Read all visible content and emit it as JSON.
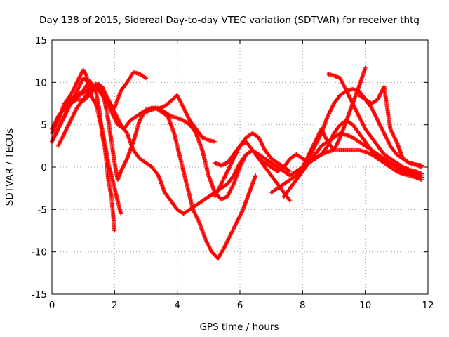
{
  "chart_data": {
    "type": "scatter",
    "title": "Day 138 of 2015, Sidereal Day-to-day VTEC variation (SDTVAR) for receiver thtg",
    "xlabel": "GPS time / hours",
    "ylabel": "SDTVAR / TECUs",
    "xlim": [
      0,
      12
    ],
    "ylim": [
      -15,
      15
    ],
    "xticks": [
      0,
      2,
      4,
      6,
      8,
      10,
      12
    ],
    "yticks": [
      -15,
      -10,
      -5,
      0,
      5,
      10,
      15
    ],
    "grid": true,
    "marker": "+",
    "color": "#ff0000",
    "series": [
      {
        "x": [
          0.0,
          0.2,
          0.4,
          0.6,
          0.8,
          1.0,
          1.2,
          1.4,
          1.6,
          1.7,
          1.8,
          1.9,
          2.0,
          2.1,
          2.2,
          2.4,
          2.6,
          2.8,
          3.0,
          3.2,
          3.4,
          3.6,
          3.8,
          4.0,
          4.2,
          4.4,
          4.6,
          4.8,
          5.0,
          5.2
        ],
        "y": [
          3.0,
          4.5,
          6.0,
          7.5,
          9.0,
          10.5,
          9.8,
          9.6,
          9.0,
          7.5,
          5.5,
          3.0,
          0.5,
          -1.5,
          -0.5,
          1.0,
          3.0,
          5.5,
          6.8,
          7.0,
          6.9,
          7.2,
          7.8,
          8.5,
          7.0,
          5.5,
          4.5,
          3.5,
          3.2,
          3.0
        ]
      },
      {
        "x": [
          0.0,
          0.2,
          0.4,
          0.6,
          0.8,
          1.0,
          1.1,
          1.2,
          1.3,
          1.4,
          1.5,
          1.6,
          1.7,
          1.8,
          1.9,
          2.0,
          2.1,
          2.2
        ],
        "y": [
          4.0,
          5.5,
          7.5,
          8.5,
          10.0,
          11.5,
          10.8,
          9.0,
          8.0,
          7.5,
          6.0,
          4.5,
          2.5,
          0.5,
          -1.0,
          -2.5,
          -4.0,
          -5.5
        ]
      },
      {
        "x": [
          0.0,
          0.2,
          0.4,
          0.6,
          0.8,
          1.0,
          1.2,
          1.4,
          1.5,
          1.6,
          1.7,
          1.8,
          1.9,
          2.0
        ],
        "y": [
          3.0,
          4.5,
          6.0,
          8.0,
          8.5,
          9.0,
          10.2,
          9.0,
          7.0,
          4.0,
          2.0,
          -1.5,
          -3.5,
          -7.5
        ]
      },
      {
        "x": [
          0.0,
          0.2,
          0.4,
          0.6,
          0.8,
          1.0,
          1.2,
          1.4,
          1.6,
          1.8,
          2.0,
          2.2,
          2.4,
          2.6,
          2.8,
          3.0
        ],
        "y": [
          4.5,
          6.0,
          7.0,
          7.5,
          8.0,
          7.8,
          8.5,
          9.5,
          8.5,
          7.5,
          7.0,
          9.0,
          10.0,
          11.2,
          11.0,
          10.5
        ]
      },
      {
        "x": [
          0.1,
          0.3,
          0.5,
          0.7,
          0.9,
          1.1,
          1.3,
          1.5,
          1.7,
          1.9,
          2.1,
          2.3,
          2.5,
          2.7,
          2.9,
          3.1,
          3.3,
          3.5,
          3.7,
          3.9,
          4.1,
          4.3,
          4.5,
          4.7,
          4.9,
          5.1,
          5.3,
          5.5,
          5.7,
          5.9,
          6.1,
          6.3,
          6.5
        ],
        "y": [
          5.0,
          6.5,
          7.5,
          8.0,
          8.5,
          9.0,
          9.5,
          9.8,
          8.5,
          6.5,
          5.0,
          4.5,
          5.5,
          6.0,
          6.5,
          6.8,
          7.0,
          6.5,
          6.0,
          4.0,
          1.0,
          -2.0,
          -5.0,
          -6.5,
          -8.5,
          -10.0,
          -10.8,
          -9.5,
          -8.0,
          -6.5,
          -5.0,
          -3.0,
          -1.0
        ]
      },
      {
        "x": [
          0.2,
          0.4,
          0.6,
          0.8,
          1.0,
          1.2,
          1.4,
          1.6,
          1.8,
          2.0,
          2.2,
          2.4,
          2.6,
          2.8,
          3.0,
          3.2,
          3.4,
          3.6,
          3.8,
          4.0,
          4.2,
          4.4,
          4.6,
          4.8,
          5.0,
          5.2,
          5.4,
          5.6,
          5.8,
          6.0,
          6.2,
          6.4,
          6.6,
          6.8,
          7.0,
          7.2,
          7.4,
          7.6,
          7.8,
          8.0
        ],
        "y": [
          2.5,
          4.0,
          5.5,
          7.0,
          8.0,
          9.0,
          9.8,
          9.5,
          8.0,
          6.5,
          5.0,
          4.0,
          2.0,
          1.0,
          0.5,
          0.0,
          -1.0,
          -3.0,
          -4.0,
          -5.0,
          -5.5,
          -5.0,
          -4.5,
          -4.0,
          -3.5,
          -3.0,
          -2.5,
          -2.0,
          -1.0,
          0.5,
          1.5,
          2.0,
          1.5,
          1.0,
          0.5,
          0.0,
          -0.5,
          -1.0,
          -0.5,
          0.0
        ]
      },
      {
        "x": [
          3.0,
          3.2,
          3.4,
          3.6,
          3.8,
          4.0,
          4.2,
          4.4,
          4.6,
          4.8,
          5.0,
          5.2,
          5.4,
          5.6,
          5.8,
          6.0,
          6.2,
          6.4,
          6.6,
          6.8,
          7.0,
          7.2,
          7.4,
          7.6
        ],
        "y": [
          6.5,
          6.8,
          7.0,
          6.5,
          6.0,
          5.8,
          5.5,
          5.0,
          4.0,
          2.0,
          -1.0,
          -3.0,
          -3.8,
          -3.5,
          -2.0,
          0.0,
          1.5,
          2.0,
          1.0,
          0.0,
          -1.0,
          -2.0,
          -3.0,
          -4.0
        ]
      },
      {
        "x": [
          5.2,
          5.4,
          5.6,
          5.8,
          6.0,
          6.2,
          6.4,
          6.6,
          6.8,
          7.0,
          7.2,
          7.4,
          7.6,
          7.8,
          8.0,
          8.2,
          8.4,
          8.6,
          8.8,
          9.0,
          9.2,
          9.4,
          9.6,
          9.8,
          10.0,
          10.2,
          10.4,
          10.6,
          10.8,
          11.0,
          11.2,
          11.4,
          11.6,
          11.8
        ],
        "y": [
          0.5,
          0.2,
          0.5,
          1.5,
          2.5,
          3.0,
          2.0,
          1.0,
          0.5,
          0.0,
          -0.5,
          0.0,
          1.0,
          1.5,
          1.0,
          0.5,
          1.0,
          1.5,
          1.8,
          2.0,
          2.0,
          2.0,
          2.0,
          2.0,
          1.8,
          1.5,
          1.0,
          0.8,
          0.5,
          0.0,
          -0.3,
          -0.5,
          -0.8,
          -1.0
        ]
      },
      {
        "x": [
          5.2,
          5.4,
          5.6,
          5.8,
          6.0,
          6.2,
          6.4,
          6.6,
          6.8,
          7.0,
          7.2,
          7.4,
          7.6
        ],
        "y": [
          -3.5,
          -2.0,
          -0.5,
          1.0,
          2.5,
          3.5,
          4.0,
          3.5,
          2.0,
          1.0,
          0.5,
          0.0,
          -0.5
        ]
      },
      {
        "x": [
          7.0,
          7.2,
          7.4,
          7.6,
          7.8,
          8.0,
          8.2,
          8.4,
          8.6,
          8.8,
          9.0,
          9.2,
          9.4,
          9.6,
          9.8,
          10.0,
          10.2,
          10.4,
          10.6,
          10.8,
          11.0,
          11.2,
          11.4,
          11.6,
          11.8
        ],
        "y": [
          -3.0,
          -2.5,
          -2.0,
          -1.5,
          -1.0,
          0.0,
          1.0,
          2.5,
          4.0,
          6.0,
          7.5,
          8.5,
          9.0,
          9.2,
          9.0,
          8.0,
          7.0,
          5.5,
          4.0,
          2.5,
          1.5,
          1.0,
          0.5,
          0.3,
          0.0
        ]
      },
      {
        "x": [
          7.4,
          7.6,
          7.8,
          8.0,
          8.2,
          8.4,
          8.6,
          8.8,
          9.0,
          9.2,
          9.4,
          9.6,
          9.8,
          10.0,
          10.2,
          10.4,
          10.6,
          10.8,
          11.0,
          11.2,
          11.4,
          11.6,
          11.8
        ],
        "y": [
          -3.5,
          -2.5,
          -1.5,
          -0.5,
          0.5,
          1.5,
          2.5,
          3.0,
          3.5,
          4.0,
          3.8,
          3.5,
          3.0,
          2.5,
          2.0,
          1.5,
          1.0,
          0.5,
          0.0,
          -0.5,
          -0.8,
          -1.0,
          -1.2
        ]
      },
      {
        "x": [
          7.6,
          7.8,
          8.0,
          8.2,
          8.4,
          8.6,
          8.8,
          9.0,
          9.2,
          9.4,
          9.6,
          9.8,
          10.0
        ],
        "y": [
          -2.5,
          -1.5,
          0.0,
          1.5,
          3.0,
          4.5,
          3.0,
          2.0,
          3.5,
          5.5,
          7.5,
          9.5,
          11.7
        ]
      },
      {
        "x": [
          8.0,
          8.2,
          8.4,
          8.6,
          8.8,
          9.0,
          9.2,
          9.4,
          9.6,
          9.8,
          10.0,
          10.2,
          10.4,
          10.6,
          10.8,
          11.0,
          11.2,
          11.4,
          11.6,
          11.8
        ],
        "y": [
          0.0,
          0.5,
          1.0,
          1.5,
          2.5,
          4.0,
          5.0,
          5.5,
          5.0,
          4.0,
          3.0,
          2.0,
          1.0,
          0.5,
          0.0,
          -0.5,
          -0.8,
          -1.0,
          -1.2,
          -1.5
        ]
      },
      {
        "x": [
          8.8,
          9.0,
          9.2,
          9.4,
          9.6,
          9.8,
          10.0,
          10.2,
          10.4,
          10.6,
          10.8,
          11.0,
          11.2,
          11.4,
          11.6,
          11.8
        ],
        "y": [
          11.0,
          10.8,
          10.5,
          9.0,
          7.5,
          6.0,
          4.5,
          3.5,
          2.5,
          1.5,
          1.0,
          0.5,
          0.0,
          -0.3,
          -0.5,
          -0.8
        ]
      },
      {
        "x": [
          9.8,
          10.0,
          10.2,
          10.4,
          10.6,
          10.8,
          11.0,
          11.2,
          11.4,
          11.6,
          11.8
        ],
        "y": [
          8.5,
          8.0,
          7.5,
          8.0,
          9.5,
          4.5,
          3.0,
          1.0,
          0.5,
          0.3,
          0.2
        ]
      }
    ]
  }
}
